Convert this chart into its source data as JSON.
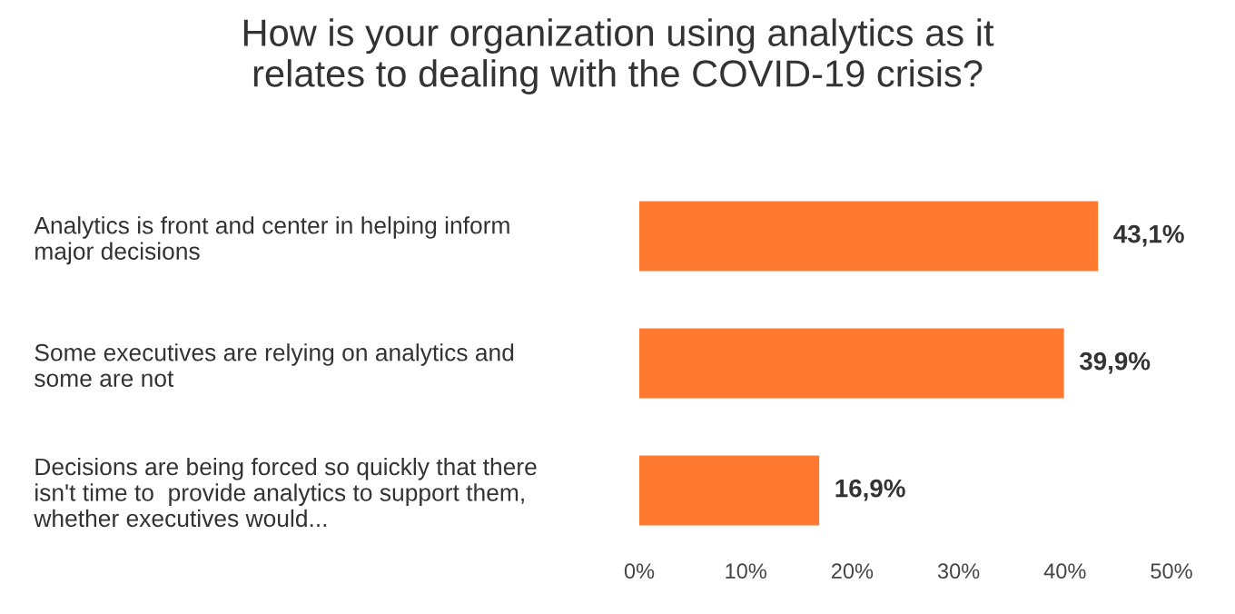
{
  "chart_data": {
    "type": "bar",
    "orientation": "horizontal",
    "title": "How is your organization using analytics as it\nrelates to dealing with the COVID-19 crisis?",
    "categories": [
      "Analytics is front and center in helping inform\nmajor decisions",
      "Some executives are relying on analytics and\nsome are not",
      "Decisions are being forced so quickly that there\nisn't time to  provide analytics to support them,\nwhether executives would..."
    ],
    "values": [
      43.1,
      39.9,
      16.9
    ],
    "value_labels": [
      "43,1%",
      "39,9%",
      "16,9%"
    ],
    "color": "#ff7a30",
    "xlim": [
      0,
      50
    ],
    "xticks": [
      {
        "value": 0,
        "label": "0%"
      },
      {
        "value": 10,
        "label": "10%"
      },
      {
        "value": 20,
        "label": "20%"
      },
      {
        "value": 30,
        "label": "30%"
      },
      {
        "value": 40,
        "label": "40%"
      },
      {
        "value": 50,
        "label": "50%"
      }
    ],
    "grid": false,
    "legend": false
  }
}
